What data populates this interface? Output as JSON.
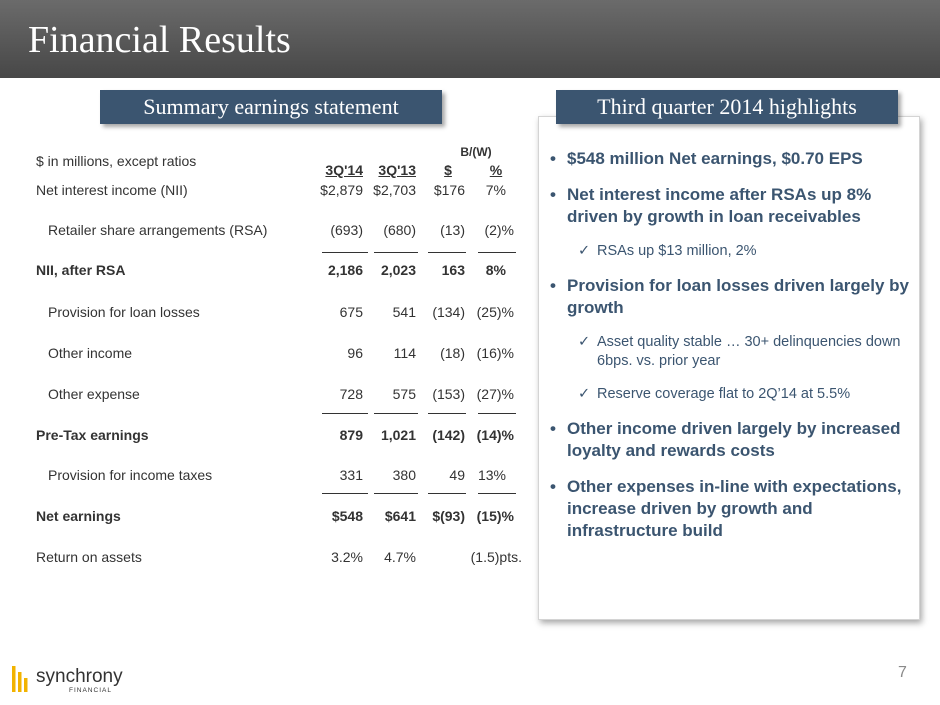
{
  "header": {
    "title": "Financial Results"
  },
  "badges": {
    "left": "Summary earnings statement",
    "right": "Third quarter 2014 highlights"
  },
  "table": {
    "caption": "$ in millions, except ratios",
    "group_header": "B/(W)",
    "columns": [
      "3Q'14",
      "3Q'13",
      "$",
      "%"
    ],
    "rows": [
      {
        "label": "Net interest income (NII)",
        "values": [
          "$2,879",
          "$2,703",
          "$176",
          "7%"
        ]
      },
      {
        "label": "Retailer share arrangements (RSA)",
        "values": [
          "(693)",
          "(680)",
          "(13)",
          "(2)%"
        ]
      },
      {
        "label": "NII, after RSA",
        "values": [
          "2,186",
          "2,023",
          "163",
          "8%"
        ]
      },
      {
        "label": "Provision for loan losses",
        "values": [
          "675",
          "541",
          "(134)",
          "(25)%"
        ]
      },
      {
        "label": "Other income",
        "values": [
          "96",
          "114",
          "(18)",
          "(16)%"
        ]
      },
      {
        "label": "Other expense",
        "values": [
          "728",
          "575",
          "(153)",
          "(27)%"
        ]
      },
      {
        "label": "Pre-Tax earnings",
        "values": [
          "879",
          "1,021",
          "(142)",
          "(14)%"
        ]
      },
      {
        "label": "Provision for income taxes",
        "values": [
          "331",
          "380",
          "49",
          "13%"
        ]
      },
      {
        "label": "Net earnings",
        "values": [
          "$548",
          "$641",
          "$(93)",
          "(15)%"
        ]
      },
      {
        "label": "Return on assets",
        "values": [
          "3.2%",
          "4.7%",
          "(1.5)pts."
        ]
      }
    ]
  },
  "highlights": [
    {
      "text": "$548 million Net earnings, $0.70 EPS"
    },
    {
      "text": "Net interest income after RSAs up 8% driven by growth in loan receivables"
    },
    {
      "text": "RSAs up $13 million, 2%"
    },
    {
      "text": "Provision for loan losses driven largely by growth"
    },
    {
      "text": "Asset quality stable … 30+ delinquencies down 6bps. vs. prior year"
    },
    {
      "text": "Reserve coverage flat to 2Q’14 at 5.5%"
    },
    {
      "text": "Other income driven largely by increased loyalty and rewards costs"
    },
    {
      "text": "Other expenses in-line with expectations, increase driven by growth and infrastructure build"
    }
  ],
  "glyphs": {
    "bullet": "•",
    "check": "✓"
  },
  "logo": {
    "name": "synchrony",
    "sub": "FINANCIAL"
  },
  "page_number": "7",
  "colors": {
    "header": "#555555",
    "badge": "#3b5570",
    "highlight_text": "#3b5570",
    "logo_gold": "#f2b300"
  }
}
